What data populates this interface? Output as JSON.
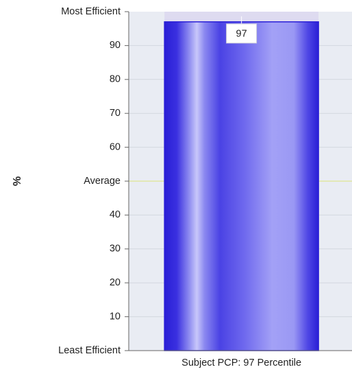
{
  "chart_data": {
    "type": "bar",
    "categories": [
      "Subject PCP: 97 Percentile"
    ],
    "values": [
      97
    ],
    "data_labels": [
      "97"
    ],
    "ylabel": "%",
    "ylim": [
      0,
      100
    ],
    "yticks": [
      {
        "value": 100,
        "label": "Most Efficient"
      },
      {
        "value": 90,
        "label": "90"
      },
      {
        "value": 80,
        "label": "80"
      },
      {
        "value": 70,
        "label": "70"
      },
      {
        "value": 60,
        "label": "60"
      },
      {
        "value": 50,
        "label": "Average"
      },
      {
        "value": 40,
        "label": "40"
      },
      {
        "value": 30,
        "label": "30"
      },
      {
        "value": 20,
        "label": "20"
      },
      {
        "value": 10,
        "label": "10"
      },
      {
        "value": 0,
        "label": "Least Efficient"
      }
    ],
    "average_line": 50,
    "grid": true,
    "colors": {
      "bar_dark": "#2a1fd6",
      "bar_light": "#a9a8f5",
      "plot_bg": "#e9ecf3",
      "grid": "#d3d7e0",
      "average_line": "#dfe6a2",
      "bar_cap": "#dedbf0"
    }
  }
}
